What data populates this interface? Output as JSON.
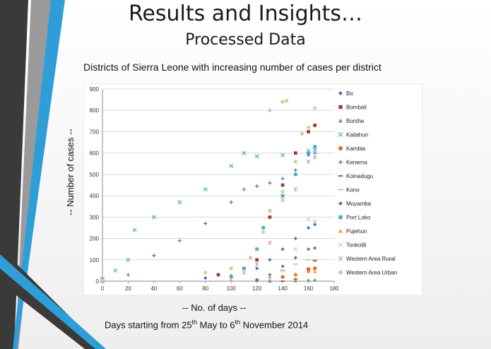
{
  "slide": {
    "title": "Results and Insights…",
    "subtitle": "Processed Data",
    "caption_start": "Days starting from 25",
    "caption_sup1": "th",
    "caption_mid": " May to 6",
    "caption_sup2": "th",
    "caption_end": " November 2014"
  },
  "chart_data": {
    "type": "scatter",
    "title": "Districts of Sierra Leone with increasing number of cases per district",
    "xlabel": "-- No. of days --",
    "ylabel": "-- Number of cases --",
    "xlim": [
      0,
      180
    ],
    "ylim": [
      0,
      900
    ],
    "x_ticks": [
      0,
      20,
      40,
      60,
      80,
      100,
      120,
      140,
      160,
      180
    ],
    "y_ticks": [
      0,
      100,
      200,
      300,
      400,
      500,
      600,
      700,
      800,
      900
    ],
    "grid": "horizontal",
    "legend": "right",
    "series": [
      {
        "name": "Bo",
        "marker": "diamond",
        "color": "#4472c4",
        "points": [
          [
            0,
            10
          ],
          [
            80,
            15
          ],
          [
            100,
            25
          ],
          [
            120,
            60
          ],
          [
            130,
            100
          ],
          [
            140,
            150
          ],
          [
            150,
            200
          ],
          [
            160,
            250
          ],
          [
            165,
            265
          ]
        ]
      },
      {
        "name": "Bombali",
        "marker": "square",
        "color": "#9e3a38",
        "points": [
          [
            0,
            5
          ],
          [
            90,
            30
          ],
          [
            110,
            60
          ],
          [
            120,
            100
          ],
          [
            130,
            300
          ],
          [
            140,
            450
          ],
          [
            150,
            600
          ],
          [
            160,
            700
          ],
          [
            165,
            730
          ]
        ]
      },
      {
        "name": "Bonthe",
        "marker": "triangle",
        "color": "#77933c",
        "points": [
          [
            0,
            0
          ],
          [
            130,
            0
          ],
          [
            150,
            2
          ],
          [
            160,
            5
          ],
          [
            165,
            6
          ]
        ]
      },
      {
        "name": "Kailahun",
        "marker": "x",
        "color": "#4bacc6",
        "points": [
          [
            0,
            10
          ],
          [
            10,
            50
          ],
          [
            20,
            100
          ],
          [
            25,
            240
          ],
          [
            40,
            300
          ],
          [
            60,
            370
          ],
          [
            80,
            430
          ],
          [
            100,
            540
          ],
          [
            110,
            600
          ],
          [
            120,
            585
          ],
          [
            140,
            590
          ],
          [
            160,
            610
          ],
          [
            165,
            615
          ]
        ]
      },
      {
        "name": "Kambia",
        "marker": "circle",
        "color": "#e46c0a",
        "points": [
          [
            0,
            0
          ],
          [
            120,
            5
          ],
          [
            140,
            20
          ],
          [
            150,
            30
          ],
          [
            160,
            50
          ],
          [
            165,
            60
          ]
        ]
      },
      {
        "name": "Kenema",
        "marker": "plus",
        "color": "#4f6fb3",
        "points": [
          [
            0,
            0
          ],
          [
            20,
            30
          ],
          [
            40,
            120
          ],
          [
            60,
            190
          ],
          [
            80,
            270
          ],
          [
            100,
            370
          ],
          [
            110,
            430
          ],
          [
            120,
            445
          ],
          [
            130,
            460
          ],
          [
            140,
            480
          ],
          [
            150,
            520
          ],
          [
            160,
            590
          ],
          [
            165,
            600
          ]
        ]
      },
      {
        "name": "Koinadugu",
        "marker": "dash",
        "color": "#c0504d",
        "points": [
          [
            0,
            0
          ],
          [
            140,
            0
          ],
          [
            150,
            10
          ],
          [
            160,
            60
          ],
          [
            165,
            95
          ]
        ]
      },
      {
        "name": "Kono",
        "marker": "line",
        "color": "#9bbb59",
        "points": [
          [
            0,
            0
          ],
          [
            140,
            50
          ],
          [
            150,
            80
          ],
          [
            160,
            100
          ],
          [
            165,
            100
          ]
        ]
      },
      {
        "name": "Moyamba",
        "marker": "diamond",
        "color": "#8064a2",
        "points": [
          [
            0,
            0
          ],
          [
            120,
            5
          ],
          [
            130,
            30
          ],
          [
            140,
            70
          ],
          [
            150,
            110
          ],
          [
            160,
            150
          ],
          [
            165,
            155
          ]
        ]
      },
      {
        "name": "Port Loko",
        "marker": "square",
        "color": "#4bacc6",
        "points": [
          [
            0,
            0
          ],
          [
            100,
            20
          ],
          [
            110,
            60
          ],
          [
            120,
            150
          ],
          [
            125,
            250
          ],
          [
            130,
            330
          ],
          [
            140,
            400
          ],
          [
            150,
            500
          ],
          [
            160,
            600
          ],
          [
            165,
            630
          ]
        ]
      },
      {
        "name": "Pujehun",
        "marker": "triangle",
        "color": "#f79646",
        "points": [
          [
            0,
            0
          ],
          [
            100,
            5
          ],
          [
            130,
            20
          ],
          [
            150,
            35
          ],
          [
            160,
            45
          ],
          [
            165,
            45
          ]
        ]
      },
      {
        "name": "Tonkolili",
        "marker": "x",
        "color": "#b9cde5",
        "points": [
          [
            0,
            0
          ],
          [
            130,
            10
          ],
          [
            140,
            50
          ],
          [
            150,
            150
          ],
          [
            160,
            290
          ],
          [
            165,
            280
          ]
        ]
      },
      {
        "name": "Western Area Rural",
        "marker": "star",
        "color": "#d99bb1",
        "points": [
          [
            0,
            0
          ],
          [
            110,
            40
          ],
          [
            120,
            80
          ],
          [
            130,
            180
          ],
          [
            140,
            380
          ],
          [
            150,
            430
          ],
          [
            160,
            560
          ],
          [
            165,
            580
          ]
        ]
      },
      {
        "name": "Western Area Urban",
        "marker": "circle",
        "color": "#c3d69b",
        "points": [
          [
            0,
            5
          ],
          [
            80,
            40
          ],
          [
            100,
            60
          ],
          [
            115,
            110
          ],
          [
            125,
            230
          ],
          [
            130,
            330
          ],
          [
            140,
            420
          ],
          [
            150,
            560
          ],
          [
            155,
            690
          ],
          [
            160,
            720
          ],
          [
            165,
            810
          ],
          [
            130,
            800
          ],
          [
            140,
            840
          ],
          [
            143,
            845
          ]
        ]
      }
    ]
  }
}
